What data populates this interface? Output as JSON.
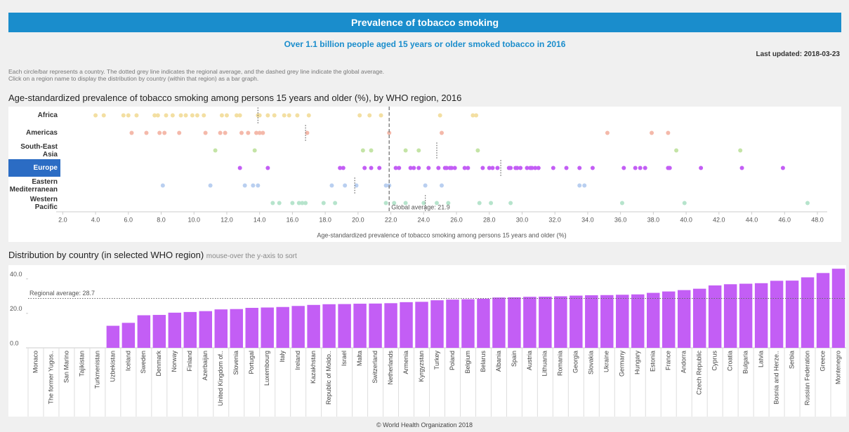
{
  "header": {
    "title": "Prevalence of tobacco smoking",
    "subtitle": "Over 1.1 billion people aged 15 years or older smoked tobacco in 2016",
    "last_updated": "Last updated: 2018-03-23",
    "notes": [
      "Each circle/bar represents a country. The dotted grey line indicates the regional average, and the dashed grey line indicate the global average.",
      "Click on a region name to display the distribution by country (within that region) as a bar graph."
    ]
  },
  "footer": "© World Health Organization 2018",
  "chart_data": [
    {
      "type": "strip",
      "title": "Age-standardized prevalence of tobacco smoking among persons 15 years and older (%), by WHO region, 2016",
      "xlabel": "Age-standardized prevalence of tobacco smoking among persons 15 years and older (%)",
      "xlim": [
        1.6,
        48.6
      ],
      "xticks": [
        {
          "value": 2,
          "label": "2.0"
        },
        {
          "value": 4,
          "label": "4.0"
        },
        {
          "value": 6,
          "label": "6.0"
        },
        {
          "value": 8,
          "label": "8.0"
        },
        {
          "value": 10,
          "label": "10.0"
        },
        {
          "value": 12,
          "label": "12.0"
        },
        {
          "value": 14,
          "label": "14.0"
        },
        {
          "value": 16,
          "label": "16.0"
        },
        {
          "value": 18,
          "label": "18.0"
        },
        {
          "value": 20,
          "label": "20.0"
        },
        {
          "value": 22,
          "label": "22.0"
        },
        {
          "value": 24,
          "label": "24.0"
        },
        {
          "value": 26,
          "label": "26.0"
        },
        {
          "value": 28,
          "label": "28.0"
        },
        {
          "value": 30,
          "label": "30.0"
        },
        {
          "value": 32,
          "label": "32.0"
        },
        {
          "value": 34,
          "label": "34.0"
        },
        {
          "value": 36,
          "label": "36.0"
        },
        {
          "value": 38,
          "label": "38.0"
        },
        {
          "value": 40,
          "label": "40.0"
        },
        {
          "value": 42,
          "label": "42.0"
        },
        {
          "value": 44,
          "label": "44.0"
        },
        {
          "value": 46,
          "label": "46.0"
        },
        {
          "value": 48,
          "label": "48.0"
        }
      ],
      "selected": "Europe",
      "global_average": 21.9,
      "global_average_label": "Global average: 21.9",
      "series": [
        {
          "name": "Africa",
          "color": "#f3dfa2",
          "average": 13.9,
          "values": [
            4.0,
            4.5,
            5.7,
            6.0,
            6.5,
            7.6,
            7.8,
            8.3,
            8.7,
            9.2,
            9.5,
            9.9,
            10.2,
            10.6,
            11.7,
            12.0,
            12.6,
            12.8,
            13.9,
            14.0,
            14.5,
            14.9,
            15.5,
            15.8,
            16.3,
            17.0,
            20.1,
            20.7,
            21.4,
            25.0,
            27.0,
            27.2
          ]
        },
        {
          "name": "Americas",
          "color": "#f4b9aa",
          "average": 16.8,
          "values": [
            6.2,
            7.1,
            7.9,
            8.2,
            9.1,
            10.7,
            11.6,
            11.9,
            12.9,
            13.3,
            13.8,
            14.0,
            14.2,
            16.9,
            21.9,
            25.1,
            35.2,
            37.9,
            38.9
          ]
        },
        {
          "name": "South-East Asia",
          "color": "#c4e4a6",
          "average": 24.8,
          "values": [
            11.3,
            13.7,
            20.3,
            20.8,
            22.9,
            23.7,
            27.3,
            39.4,
            43.3
          ]
        },
        {
          "name": "Europe",
          "color": "#c35ef5",
          "average": 28.7,
          "values": [
            12.8,
            14.5,
            18.9,
            19.1,
            20.4,
            20.8,
            21.3,
            22.3,
            22.5,
            23.2,
            23.4,
            23.7,
            24.3,
            24.9,
            25.3,
            25.4,
            25.6,
            25.7,
            25.9,
            26.5,
            26.7,
            27.6,
            28.0,
            28.2,
            28.5,
            29.2,
            29.3,
            29.6,
            29.7,
            29.9,
            30.3,
            30.5,
            30.6,
            30.8,
            31.0,
            31.9,
            32.7,
            33.5,
            34.3,
            36.2,
            36.9,
            37.2,
            37.5,
            38.9,
            39.0,
            40.9,
            43.4,
            45.9
          ]
        },
        {
          "name": "Eastern Mediterranean",
          "color": "#b9cff0",
          "average": 19.8,
          "values": [
            8.1,
            11.0,
            13.1,
            13.6,
            13.9,
            18.4,
            19.2,
            19.9,
            21.7,
            21.9,
            24.1,
            25.1,
            33.5,
            33.8
          ]
        },
        {
          "name": "Western Pacific",
          "color": "#b6e4cc",
          "average": 24.1,
          "values": [
            14.8,
            15.2,
            16.0,
            16.4,
            16.6,
            16.8,
            17.9,
            18.6,
            21.7,
            22.2,
            22.9,
            24.0,
            24.8,
            25.5,
            27.4,
            28.1,
            29.3,
            36.1,
            39.9,
            47.4
          ]
        }
      ]
    },
    {
      "type": "bar",
      "title": "Distribution by country (in selected WHO region)",
      "subtitle": "mouse-over the y-axis to sort",
      "color": "#c35ef5",
      "ylim": [
        0,
        48
      ],
      "yticks": [
        {
          "value": 0,
          "label": "0.0"
        },
        {
          "value": 20,
          "label": "20.0"
        },
        {
          "value": 40,
          "label": "40.0"
        }
      ],
      "average": 28.7,
      "average_label": "Regional average: 28.7",
      "categories": [
        "Monaco",
        "The former Yugos..",
        "San Marino",
        "Tajikistan",
        "Turkmenistan",
        "Uzbekistan",
        "Iceland",
        "Sweden",
        "Denmark",
        "Norway",
        "Finland",
        "Azerbaijan",
        "United Kingdom of..",
        "Slovenia",
        "Portugal",
        "Luxembourg",
        "Italy",
        "Ireland",
        "Kazakhstan",
        "Republic of Moldo..",
        "Israel",
        "Malta",
        "Switzerland",
        "Netherlands",
        "Armenia",
        "Kyrgyzstan",
        "Turkey",
        "Poland",
        "Belgium",
        "Belarus",
        "Albania",
        "Spain",
        "Austria",
        "Lithuania",
        "Romania",
        "Georgia",
        "Slovakia",
        "Ukraine",
        "Germany",
        "Hungary",
        "Estonia",
        "France",
        "Andorra",
        "Czech Republic",
        "Cyprus",
        "Croatia",
        "Bulgaria",
        "Latvia",
        "Bosnia and Herze..",
        "Serbia",
        "Russian Federation",
        "Greece",
        "Montenegro"
      ],
      "values": [
        null,
        null,
        null,
        null,
        null,
        12.8,
        14.5,
        18.9,
        19.1,
        20.4,
        20.8,
        21.3,
        22.3,
        22.5,
        23.2,
        23.4,
        23.7,
        24.3,
        24.9,
        25.3,
        25.4,
        25.6,
        25.7,
        25.9,
        26.5,
        26.7,
        27.6,
        28.0,
        28.2,
        28.5,
        29.2,
        29.3,
        29.6,
        29.7,
        29.9,
        30.3,
        30.5,
        30.6,
        30.8,
        31.0,
        31.9,
        32.7,
        33.5,
        34.3,
        36.2,
        36.9,
        37.2,
        37.5,
        38.9,
        39.0,
        40.9,
        43.4,
        45.9
      ]
    }
  ]
}
